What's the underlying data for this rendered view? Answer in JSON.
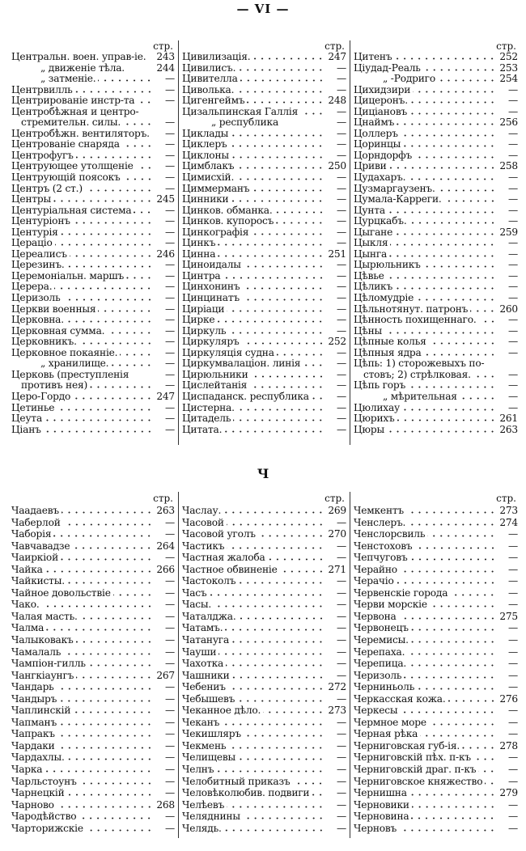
{
  "page_header": "— VI —",
  "section_letter": "Ч",
  "page_col_label": "стр.",
  "sections": [
    {
      "columns": [
        {
          "entries": [
            {
              "term": "Центральн. воен. управ-іе.",
              "page": "243",
              "nodots": true
            },
            {
              "term": "„ движеніе тѣла.",
              "page": "244",
              "ditto": true,
              "nodots": true
            },
            {
              "term": "„ затменіе.",
              "page": "—",
              "ditto": true
            },
            {
              "term": "Центрвилль",
              "page": "—"
            },
            {
              "term": "Центрированіе инстр-та",
              "page": "—"
            },
            {
              "term": "Центробѣжная и центро-",
              "page": "",
              "nodots": true
            },
            {
              "term": "стремительн. силы.",
              "page": "—",
              "cont": true
            },
            {
              "term": "Центробѣжн. вентиляторъ.",
              "page": "—",
              "nodots": true
            },
            {
              "term": "Центрованіе снаряда",
              "page": "—"
            },
            {
              "term": "Центрофугъ",
              "page": "—"
            },
            {
              "term": "Центрующее утолщеніе",
              "page": "—"
            },
            {
              "term": "Центрующій поясокъ",
              "page": "—"
            },
            {
              "term": "Центръ (2 ст.)",
              "page": "—"
            },
            {
              "term": "Центры",
              "page": "245"
            },
            {
              "term": "Центуріальная система",
              "page": "—"
            },
            {
              "term": "Центуріонъ",
              "page": "—"
            },
            {
              "term": "Центурія",
              "page": "—"
            },
            {
              "term": "Цераціо",
              "page": "—"
            },
            {
              "term": "Цереалисъ",
              "page": "246"
            },
            {
              "term": "Церезинъ.",
              "page": "—"
            },
            {
              "term": "Церемоніальн. маршъ",
              "page": "—"
            },
            {
              "term": "Церера.",
              "page": "—"
            },
            {
              "term": "Церизоль",
              "page": "—"
            },
            {
              "term": "Церкви военныя",
              "page": "—"
            },
            {
              "term": "Церковна.",
              "page": "—"
            },
            {
              "term": "Церковная сумма.",
              "page": "—"
            },
            {
              "term": "Церковникъ.",
              "page": "—"
            },
            {
              "term": "Церковное покаяніе.",
              "page": "—"
            },
            {
              "term": "„ хранилище.",
              "page": "—",
              "ditto": true
            },
            {
              "term": "Церковь (преступленія",
              "page": "—",
              "nodots": true
            },
            {
              "term": "противъ нея)",
              "page": "—",
              "cont": true
            },
            {
              "term": "Церо-Гордо",
              "page": "247"
            },
            {
              "term": "Цетинье",
              "page": "—"
            },
            {
              "term": "Цеута",
              "page": "—"
            },
            {
              "term": "Ціанъ",
              "page": "—"
            }
          ]
        },
        {
          "entries": [
            {
              "term": "Цивилизація.",
              "page": "247"
            },
            {
              "term": "Цивилисъ.",
              "page": "—"
            },
            {
              "term": "Цивителла",
              "page": "—"
            },
            {
              "term": "Циволька.",
              "page": "—"
            },
            {
              "term": "Цигенгеймъ",
              "page": "248"
            },
            {
              "term": "Цизальпинская Галлія",
              "page": "—"
            },
            {
              "term": "„ республика",
              "page": "—",
              "ditto": true,
              "nodots": true
            },
            {
              "term": "Циклады",
              "page": "—"
            },
            {
              "term": "Циклеръ",
              "page": "—"
            },
            {
              "term": "Циклоны",
              "page": "—"
            },
            {
              "term": "Цимблакъ",
              "page": "250"
            },
            {
              "term": "Цимисхій.",
              "page": "—"
            },
            {
              "term": "Циммерманъ",
              "page": "—"
            },
            {
              "term": "Цинники",
              "page": "—"
            },
            {
              "term": "Цинков. обманка.",
              "page": "—"
            },
            {
              "term": "Цинков. купоросъ",
              "page": "—"
            },
            {
              "term": "Цинкографія",
              "page": "—"
            },
            {
              "term": "Цинкъ",
              "page": "—"
            },
            {
              "term": "Цинна",
              "page": "251"
            },
            {
              "term": "Циноидалы",
              "page": "—"
            },
            {
              "term": "Цинтра",
              "page": "—"
            },
            {
              "term": "Цинхонинъ",
              "page": "—"
            },
            {
              "term": "Цинцинатъ",
              "page": "—"
            },
            {
              "term": "Циріаци",
              "page": "—"
            },
            {
              "term": "Цирке",
              "page": "—"
            },
            {
              "term": "Циркуль",
              "page": "—"
            },
            {
              "term": "Циркуляръ",
              "page": "252"
            },
            {
              "term": "Циркуляція судна",
              "page": "—"
            },
            {
              "term": "Циркумвалаціон. линія",
              "page": "—"
            },
            {
              "term": "Цирюльники",
              "page": "—"
            },
            {
              "term": "Цислейтанія",
              "page": "—"
            },
            {
              "term": "Циспаданск. республика",
              "page": "—"
            },
            {
              "term": "Цистерна.",
              "page": "—"
            },
            {
              "term": "Цитадель",
              "page": "—"
            },
            {
              "term": "Цитата.",
              "page": "—"
            }
          ]
        },
        {
          "entries": [
            {
              "term": "Цитенъ",
              "page": "252"
            },
            {
              "term": "Ціудад-Реаль",
              "page": "253"
            },
            {
              "term": "„ -Родриго",
              "page": "254",
              "ditto": true
            },
            {
              "term": "Цихидзири",
              "page": "—"
            },
            {
              "term": "Цицеронъ.",
              "page": "—"
            },
            {
              "term": "Циціановъ",
              "page": "—"
            },
            {
              "term": "Цнаймъ",
              "page": "256"
            },
            {
              "term": "Цоллеръ",
              "page": "—"
            },
            {
              "term": "Цоринцы",
              "page": "—"
            },
            {
              "term": "Цорндорфъ",
              "page": "—"
            },
            {
              "term": "Цриви",
              "page": "258"
            },
            {
              "term": "Цудахаръ.",
              "page": "—"
            },
            {
              "term": "Цузмаргаузенъ.",
              "page": "—"
            },
            {
              "term": "Цумала-Карреги.",
              "page": "—"
            },
            {
              "term": "Цунта",
              "page": "—"
            },
            {
              "term": "Цурцкабъ.",
              "page": "—"
            },
            {
              "term": "Цыгане",
              "page": "259"
            },
            {
              "term": "Цыкля",
              "page": "—"
            },
            {
              "term": "Цынга",
              "page": "—"
            },
            {
              "term": "Цырюльникъ",
              "page": "—"
            },
            {
              "term": "Цѣвье",
              "page": "—"
            },
            {
              "term": "Цѣликъ",
              "page": "—"
            },
            {
              "term": "Цѣломудріе",
              "page": "—"
            },
            {
              "term": "Цѣльнотянут. патронъ",
              "page": "260"
            },
            {
              "term": "Цѣнность похищеннаго.",
              "page": "—"
            },
            {
              "term": "Цѣны",
              "page": "—"
            },
            {
              "term": "Цѣпные колья",
              "page": "—"
            },
            {
              "term": "Цѣпныя ядра",
              "page": "—"
            },
            {
              "term": "Цѣпь: 1) сторожевыхъ по-",
              "page": "",
              "nodots": true
            },
            {
              "term": "стовъ; 2) стрѣлковая.",
              "page": "—",
              "cont": true
            },
            {
              "term": "Цѣпь горъ",
              "page": "—"
            },
            {
              "term": "„ мѣрительная",
              "page": "—",
              "ditto": true
            },
            {
              "term": "Цюлихау",
              "page": "—"
            },
            {
              "term": "Цюрихъ",
              "page": "261"
            },
            {
              "term": "Цюры",
              "page": "263"
            }
          ]
        }
      ]
    },
    {
      "columns": [
        {
          "entries": [
            {
              "term": "Чаадаевъ",
              "page": "263"
            },
            {
              "term": "Чаберлой",
              "page": "—"
            },
            {
              "term": "Чаборія",
              "page": "—"
            },
            {
              "term": "Чавчавадзе",
              "page": "264"
            },
            {
              "term": "Чаиркіой",
              "page": "—"
            },
            {
              "term": "Чайка",
              "page": "266"
            },
            {
              "term": "Чайкисты.",
              "page": "—"
            },
            {
              "term": "Чайное довольствіе",
              "page": "—"
            },
            {
              "term": "Чако.",
              "page": "—"
            },
            {
              "term": "Чалая масть.",
              "page": "—"
            },
            {
              "term": "Чалма",
              "page": "—"
            },
            {
              "term": "Чалыковакъ",
              "page": "—"
            },
            {
              "term": "Чамалаль",
              "page": "—"
            },
            {
              "term": "Чампіон-гилль",
              "page": "—"
            },
            {
              "term": "Чангкіаунгъ",
              "page": "267"
            },
            {
              "term": "Чандарь",
              "page": "—"
            },
            {
              "term": "Чандыръ",
              "page": "—"
            },
            {
              "term": "Чаплинскій",
              "page": "—"
            },
            {
              "term": "Чапманъ",
              "page": "—"
            },
            {
              "term": "Чапракъ",
              "page": "—"
            },
            {
              "term": "Чардаки",
              "page": "—"
            },
            {
              "term": "Чардахлы.",
              "page": "—"
            },
            {
              "term": "Чарка",
              "page": "—"
            },
            {
              "term": "Чарльстоунъ",
              "page": "—"
            },
            {
              "term": "Чарнецкій",
              "page": "—"
            },
            {
              "term": "Чарново",
              "page": "268"
            },
            {
              "term": "Чародѣйство",
              "page": "—"
            },
            {
              "term": "Чарторижскіе",
              "page": "—"
            }
          ]
        },
        {
          "entries": [
            {
              "term": "Часлау.",
              "page": "269"
            },
            {
              "term": "Часовой",
              "page": "—"
            },
            {
              "term": "Часовой уголъ",
              "page": "270"
            },
            {
              "term": "Частикъ",
              "page": "—"
            },
            {
              "term": "Частная жалоба",
              "page": "—"
            },
            {
              "term": "Частное обвиненіе",
              "page": "271"
            },
            {
              "term": "Частоколъ",
              "page": "—"
            },
            {
              "term": "Часъ",
              "page": "—"
            },
            {
              "term": "Часы.",
              "page": "—"
            },
            {
              "term": "Чаталджа.",
              "page": "—"
            },
            {
              "term": "Чатамъ.",
              "page": "—"
            },
            {
              "term": "Чатануга",
              "page": "—"
            },
            {
              "term": "Чауши",
              "page": "—"
            },
            {
              "term": "Чахотка",
              "page": "—"
            },
            {
              "term": "Чашники",
              "page": "—"
            },
            {
              "term": "Чебениъ",
              "page": "272"
            },
            {
              "term": "Чебышевъ",
              "page": "—"
            },
            {
              "term": "Чеканное дѣло.",
              "page": "273"
            },
            {
              "term": "Чеканъ",
              "page": "—"
            },
            {
              "term": "Чекишляръ",
              "page": "—"
            },
            {
              "term": "Чекмень",
              "page": "—"
            },
            {
              "term": "Челищевы",
              "page": "—"
            },
            {
              "term": "Челнъ",
              "page": "—"
            },
            {
              "term": "Челобитный приказъ",
              "page": "—"
            },
            {
              "term": "Человѣколюбив. подвиги",
              "page": "—"
            },
            {
              "term": "Челѣевъ",
              "page": "—"
            },
            {
              "term": "Челяднины",
              "page": "—"
            },
            {
              "term": "Челядь.",
              "page": "—"
            }
          ]
        },
        {
          "entries": [
            {
              "term": "Чемкентъ",
              "page": "273"
            },
            {
              "term": "Ченслеръ.",
              "page": "274"
            },
            {
              "term": "Ченслорсвиль",
              "page": "—"
            },
            {
              "term": "Ченстоховъ",
              "page": "—"
            },
            {
              "term": "Чепчуговъ",
              "page": "—"
            },
            {
              "term": "Черайно",
              "page": "—"
            },
            {
              "term": "Черачіо",
              "page": "—"
            },
            {
              "term": "Червенскіе города",
              "page": "—"
            },
            {
              "term": "Черви морскіе",
              "page": "—"
            },
            {
              "term": "Червона",
              "page": "275"
            },
            {
              "term": "Червонецъ",
              "page": "—"
            },
            {
              "term": "Черемисы.",
              "page": "—"
            },
            {
              "term": "Черепаха.",
              "page": "—"
            },
            {
              "term": "Черепица.",
              "page": "—"
            },
            {
              "term": "Черизоль",
              "page": "—"
            },
            {
              "term": "Черниньоль",
              "page": "—"
            },
            {
              "term": "Черкасская кожа.",
              "page": "276"
            },
            {
              "term": "Черкесы",
              "page": "—"
            },
            {
              "term": "Чермное море",
              "page": "—"
            },
            {
              "term": "Черная рѣка",
              "page": "—"
            },
            {
              "term": "Черниговская губ-ія.",
              "page": "278"
            },
            {
              "term": "Черниговскій пѣх. п-къ",
              "page": "—"
            },
            {
              "term": "Черниговскій драг. п-къ",
              "page": "—"
            },
            {
              "term": "Черниговское княжество",
              "page": "—"
            },
            {
              "term": "Чернишна",
              "page": "279"
            },
            {
              "term": "Черновики",
              "page": "—"
            },
            {
              "term": "Черновина",
              "page": "—"
            },
            {
              "term": "Черновъ",
              "page": "—"
            }
          ]
        }
      ]
    }
  ]
}
